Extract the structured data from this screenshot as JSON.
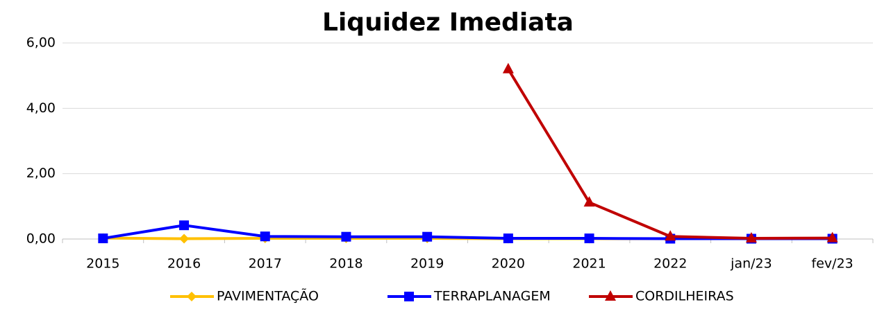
{
  "chart_data": {
    "type": "line",
    "title": "Liquidez Imediata",
    "categories": [
      "2015",
      "2016",
      "2017",
      "2018",
      "2019",
      "2020",
      "2021",
      "2022",
      "jan/23",
      "fev/23"
    ],
    "series": [
      {
        "name": "PAVIMENTAÇÃO",
        "color": "#FFC000",
        "marker": "diamond",
        "values": [
          0.03,
          0.01,
          0.02,
          0.02,
          0.02,
          0.01,
          0.01,
          0.01,
          0.01,
          0.01
        ]
      },
      {
        "name": "TERRAPLANAGEM",
        "color": "#0000FF",
        "marker": "square",
        "values": [
          0.02,
          0.42,
          0.08,
          0.07,
          0.07,
          0.02,
          0.02,
          0.01,
          0.01,
          0.01
        ]
      },
      {
        "name": "CORDILHEIRAS",
        "color": "#C00000",
        "marker": "triangle",
        "values": [
          null,
          null,
          null,
          null,
          null,
          5.2,
          1.12,
          0.08,
          0.02,
          0.03
        ]
      }
    ],
    "ylim": [
      0,
      6
    ],
    "yticks": [
      {
        "value": 0,
        "label": "0,00"
      },
      {
        "value": 2,
        "label": "2,00"
      },
      {
        "value": 4,
        "label": "4,00"
      },
      {
        "value": 6,
        "label": "6,00"
      }
    ],
    "grid": true,
    "legend": "bottom"
  }
}
